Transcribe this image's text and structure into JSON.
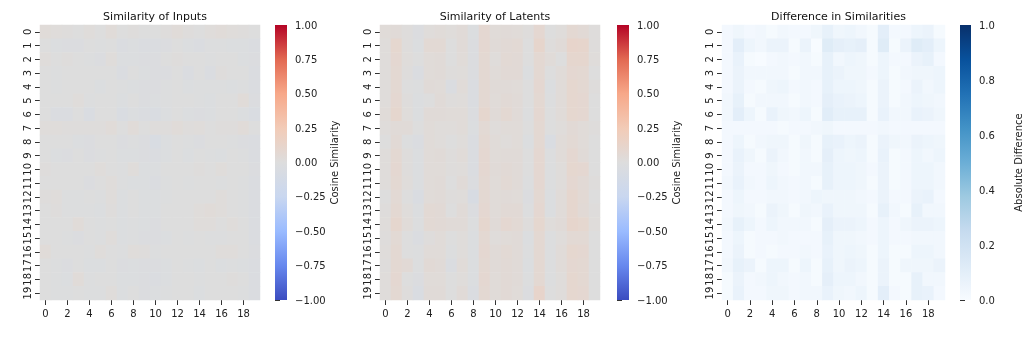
{
  "chart_data": [
    {
      "type": "heatmap",
      "title": "Similarity of Inputs",
      "clabel": "Cosine Similarity",
      "categories": [
        "0",
        null,
        "2",
        null,
        "4",
        null,
        "6",
        null,
        "8",
        null,
        "10",
        null,
        "12",
        null,
        "14",
        null,
        "16",
        null,
        "18",
        null
      ],
      "y_categories": [
        "0",
        "1",
        "2",
        "3",
        "4",
        "5",
        "6",
        "7",
        "8",
        "9",
        "10",
        "11",
        "12",
        "13",
        "14",
        "15",
        "16",
        "17",
        "18",
        "19"
      ],
      "clim": [
        -1,
        1
      ],
      "cticks": [
        {
          "value": -1,
          "label": "−1.00"
        },
        {
          "value": -0.75,
          "label": "−0.75"
        },
        {
          "value": -0.5,
          "label": "−0.50"
        },
        {
          "value": -0.25,
          "label": "−0.25"
        },
        {
          "value": 0,
          "label": "0.00"
        },
        {
          "value": 0.25,
          "label": "0.25"
        },
        {
          "value": 0.5,
          "label": "0.50"
        },
        {
          "value": 0.75,
          "label": "0.75"
        },
        {
          "value": 1,
          "label": "1.00"
        }
      ],
      "colors": [
        "#3b4cc0",
        "#6788ee",
        "#9abbff",
        "#c9d7f0",
        "#dddddd",
        "#f2cbb7",
        "#f7a889",
        "#e26952",
        "#b40426"
      ],
      "cells": [
        [
          0.03,
          0.02,
          0.01,
          0.0,
          0.02,
          0.0,
          0.03,
          0.0,
          0.01,
          0.0,
          0.0,
          0.01,
          0.03,
          0.01,
          0.0,
          0.02,
          0.03,
          0.02,
          0.01,
          0.0
        ],
        [
          0.0,
          -0.02,
          -0.03,
          -0.03,
          0.0,
          -0.01,
          0.0,
          -0.04,
          -0.02,
          -0.04,
          -0.04,
          -0.03,
          0.0,
          -0.02,
          -0.04,
          -0.01,
          -0.01,
          -0.02,
          -0.02,
          -0.04
        ],
        [
          0.02,
          0.0,
          0.01,
          0.0,
          -0.01,
          -0.03,
          0.02,
          -0.02,
          -0.02,
          -0.03,
          -0.03,
          0.0,
          0.01,
          0.0,
          0.0,
          -0.01,
          0.0,
          0.0,
          -0.02,
          -0.03
        ],
        [
          0.0,
          -0.01,
          0.0,
          0.0,
          0.0,
          0.0,
          0.0,
          -0.04,
          0.0,
          -0.02,
          -0.03,
          -0.03,
          0.0,
          -0.04,
          0.0,
          -0.04,
          0.01,
          0.0,
          0.0,
          -0.04
        ],
        [
          0.0,
          -0.01,
          0.0,
          0.0,
          0.0,
          -0.02,
          0.0,
          -0.01,
          -0.02,
          -0.03,
          -0.03,
          -0.01,
          0.0,
          -0.02,
          -0.01,
          -0.01,
          -0.01,
          -0.02,
          -0.01,
          -0.04
        ],
        [
          0.0,
          0.0,
          0.0,
          0.02,
          -0.01,
          0.0,
          0.0,
          -0.02,
          0.0,
          -0.03,
          -0.02,
          -0.01,
          0.0,
          0.0,
          -0.01,
          -0.02,
          0.0,
          0.0,
          0.03,
          -0.03
        ],
        [
          0.0,
          -0.04,
          -0.04,
          0.0,
          -0.05,
          0.0,
          0.0,
          -0.05,
          -0.02,
          -0.04,
          -0.05,
          -0.02,
          0.0,
          -0.02,
          -0.03,
          -0.02,
          0.0,
          0.0,
          -0.02,
          -0.05
        ],
        [
          0.02,
          0.02,
          0.01,
          0.01,
          0.01,
          0.01,
          0.03,
          0.0,
          0.03,
          0.0,
          0.01,
          0.01,
          0.03,
          0.01,
          0.02,
          0.0,
          0.01,
          0.01,
          0.03,
          0.0
        ],
        [
          0.0,
          0.0,
          0.0,
          -0.02,
          -0.03,
          0.0,
          0.0,
          -0.03,
          -0.01,
          -0.03,
          -0.06,
          -0.02,
          0.0,
          -0.01,
          -0.03,
          0.0,
          0.0,
          -0.01,
          -0.03,
          -0.04
        ],
        [
          0.0,
          -0.02,
          -0.03,
          0.0,
          -0.03,
          -0.01,
          0.0,
          -0.02,
          -0.02,
          -0.03,
          -0.04,
          -0.02,
          0.0,
          -0.02,
          0.0,
          -0.01,
          -0.02,
          0.0,
          -0.01,
          -0.04
        ],
        [
          0.01,
          0.0,
          0.0,
          0.0,
          0.0,
          0.02,
          0.0,
          -0.01,
          0.02,
          -0.02,
          -0.02,
          0.0,
          0.0,
          0.0,
          0.01,
          0.0,
          0.02,
          0.0,
          0.0,
          -0.03
        ],
        [
          0.0,
          0.0,
          0.0,
          0.0,
          -0.03,
          0.0,
          0.02,
          -0.01,
          -0.02,
          -0.02,
          -0.04,
          -0.01,
          0.0,
          -0.01,
          0.0,
          0.0,
          -0.01,
          0.0,
          -0.01,
          -0.04
        ],
        [
          0.01,
          0.02,
          -0.01,
          -0.01,
          0.0,
          -0.01,
          0.02,
          -0.02,
          0.0,
          -0.02,
          -0.02,
          -0.01,
          0.0,
          0.0,
          0.0,
          0.0,
          0.02,
          0.0,
          -0.01,
          -0.04
        ],
        [
          0.0,
          0.01,
          -0.01,
          -0.01,
          -0.01,
          -0.02,
          0.01,
          -0.02,
          0.0,
          -0.02,
          -0.02,
          0.0,
          0.0,
          0.0,
          0.02,
          0.03,
          0.02,
          0.0,
          -0.01,
          -0.04
        ],
        [
          0.0,
          0.0,
          0.0,
          0.03,
          0.0,
          -0.01,
          0.0,
          -0.02,
          -0.01,
          -0.02,
          -0.03,
          0.0,
          0.0,
          0.0,
          0.02,
          0.02,
          0.0,
          0.02,
          0.0,
          -0.04
        ],
        [
          0.0,
          0.0,
          -0.01,
          -0.03,
          0.0,
          -0.01,
          0.02,
          -0.02,
          -0.01,
          -0.03,
          -0.03,
          -0.02,
          0.0,
          -0.01,
          0.0,
          -0.01,
          -0.01,
          0.0,
          0.0,
          -0.04
        ],
        [
          0.03,
          0.0,
          0.0,
          0.0,
          -0.01,
          0.02,
          0.0,
          -0.01,
          0.02,
          0.01,
          -0.01,
          0.0,
          0.0,
          0.0,
          0.0,
          0.0,
          0.02,
          0.02,
          0.0,
          -0.03
        ],
        [
          0.0,
          -0.01,
          -0.03,
          0.0,
          -0.02,
          -0.02,
          0.0,
          -0.03,
          -0.02,
          -0.03,
          -0.03,
          -0.02,
          0.0,
          -0.01,
          -0.02,
          0.0,
          -0.02,
          -0.01,
          -0.02,
          -0.04
        ],
        [
          0.0,
          -0.01,
          -0.02,
          0.03,
          -0.01,
          0.0,
          0.0,
          -0.02,
          -0.02,
          -0.03,
          -0.04,
          -0.02,
          0.0,
          0.0,
          -0.01,
          0.0,
          0.0,
          0.01,
          0.0,
          -0.04
        ],
        [
          0.0,
          -0.01,
          -0.01,
          0.0,
          -0.01,
          -0.01,
          0.02,
          -0.02,
          0.0,
          -0.03,
          -0.02,
          -0.01,
          0.0,
          0.0,
          -0.02,
          0.0,
          0.0,
          0.0,
          -0.01,
          -0.04
        ]
      ]
    },
    {
      "type": "heatmap",
      "title": "Similarity of Latents",
      "clabel": "Cosine Similarity",
      "categories": [
        "0",
        null,
        "2",
        null,
        "4",
        null,
        "6",
        null,
        "8",
        null,
        "10",
        null,
        "12",
        null,
        "14",
        null,
        "16",
        null,
        "18",
        null
      ],
      "y_categories": [
        "0",
        "1",
        "2",
        "3",
        "4",
        "5",
        "6",
        "7",
        "8",
        "9",
        "10",
        "11",
        "12",
        "13",
        "14",
        "15",
        "16",
        "17",
        "18",
        "19"
      ],
      "clim": [
        -1,
        1
      ],
      "cticks": [
        {
          "value": -1,
          "label": "−1.00"
        },
        {
          "value": -0.75,
          "label": "−0.75"
        },
        {
          "value": -0.5,
          "label": "−0.50"
        },
        {
          "value": -0.25,
          "label": "−0.25"
        },
        {
          "value": 0,
          "label": "0.00"
        },
        {
          "value": 0.25,
          "label": "0.25"
        },
        {
          "value": 0.5,
          "label": "0.50"
        },
        {
          "value": 0.75,
          "label": "0.75"
        },
        {
          "value": 1,
          "label": "1.00"
        }
      ],
      "colors": [
        "#3b4cc0",
        "#6788ee",
        "#9abbff",
        "#c9d7f0",
        "#dddddd",
        "#f2cbb7",
        "#f7a889",
        "#e26952",
        "#b40426"
      ],
      "cells": [
        [
          0.03,
          0.04,
          0.01,
          -0.03,
          0.02,
          0.03,
          0.02,
          0.04,
          -0.02,
          0.08,
          0.03,
          0.04,
          0.03,
          0.01,
          0.08,
          0.0,
          0.02,
          0.07,
          0.05,
          0.01
        ],
        [
          0.02,
          0.09,
          0.01,
          -0.02,
          0.06,
          0.06,
          0.0,
          0.04,
          -0.03,
          0.08,
          0.04,
          0.05,
          0.06,
          0.0,
          0.11,
          0.01,
          0.04,
          0.12,
          0.11,
          0.01
        ],
        [
          0.02,
          0.08,
          0.02,
          0.0,
          0.03,
          0.04,
          0.0,
          0.03,
          -0.03,
          0.07,
          0.02,
          0.06,
          0.05,
          0.0,
          0.07,
          0.03,
          0.0,
          0.1,
          0.1,
          0.02
        ],
        [
          0.02,
          0.07,
          0.01,
          -0.04,
          0.03,
          0.04,
          0.01,
          0.02,
          -0.03,
          0.07,
          0.03,
          0.05,
          0.05,
          -0.02,
          0.07,
          0.0,
          0.03,
          0.08,
          0.07,
          0.0
        ],
        [
          0.02,
          0.07,
          0.0,
          -0.01,
          0.04,
          0.03,
          -0.04,
          0.03,
          -0.04,
          0.07,
          0.04,
          0.04,
          0.03,
          0.0,
          0.08,
          -0.02,
          0.03,
          0.09,
          0.07,
          0.01
        ],
        [
          0.02,
          0.08,
          0.01,
          -0.02,
          0.0,
          0.04,
          0.01,
          0.02,
          -0.04,
          0.07,
          0.03,
          0.05,
          0.04,
          0.0,
          0.07,
          -0.01,
          0.03,
          0.09,
          0.08,
          0.0
        ],
        [
          0.03,
          0.1,
          0.02,
          -0.02,
          0.04,
          0.04,
          0.03,
          0.03,
          -0.03,
          0.1,
          0.04,
          0.07,
          0.04,
          -0.01,
          0.08,
          0.0,
          0.03,
          0.09,
          0.08,
          0.0
        ],
        [
          0.02,
          0.04,
          0.04,
          0.0,
          0.03,
          0.02,
          0.02,
          0.03,
          -0.02,
          0.06,
          0.02,
          0.03,
          0.03,
          0.0,
          0.07,
          0.0,
          0.02,
          0.05,
          0.03,
          0.01
        ],
        [
          0.0,
          0.05,
          -0.01,
          -0.04,
          0.03,
          0.02,
          0.0,
          0.02,
          -0.04,
          0.07,
          0.03,
          0.02,
          0.03,
          -0.02,
          0.07,
          -0.05,
          0.03,
          0.06,
          0.03,
          0.0
        ],
        [
          0.02,
          0.07,
          0.01,
          -0.02,
          0.03,
          0.04,
          0.01,
          0.03,
          -0.04,
          0.08,
          0.03,
          0.04,
          0.04,
          0.0,
          0.08,
          -0.01,
          0.03,
          0.08,
          0.04,
          0.0
        ],
        [
          0.02,
          0.08,
          0.01,
          -0.02,
          0.03,
          0.03,
          0.01,
          0.02,
          -0.04,
          0.08,
          0.04,
          0.05,
          0.04,
          0.0,
          0.08,
          -0.01,
          0.02,
          0.09,
          0.08,
          0.0
        ],
        [
          0.02,
          0.07,
          0.02,
          -0.02,
          0.03,
          0.04,
          0.0,
          0.04,
          -0.03,
          0.07,
          0.03,
          0.06,
          0.04,
          -0.01,
          0.08,
          -0.01,
          0.02,
          0.08,
          0.05,
          0.01
        ],
        [
          0.0,
          0.06,
          0.0,
          -0.05,
          0.03,
          0.04,
          0.01,
          0.02,
          -0.07,
          0.07,
          0.03,
          0.04,
          0.03,
          -0.03,
          0.07,
          -0.02,
          0.03,
          0.1,
          0.06,
          0.0
        ],
        [
          0.01,
          0.07,
          0.02,
          -0.02,
          0.06,
          0.05,
          0.0,
          0.04,
          -0.03,
          0.08,
          0.03,
          0.05,
          0.05,
          -0.01,
          0.08,
          -0.02,
          0.03,
          0.1,
          0.05,
          0.01
        ],
        [
          0.02,
          0.1,
          0.03,
          -0.01,
          0.06,
          0.05,
          0.04,
          0.04,
          -0.01,
          0.1,
          0.04,
          0.08,
          0.06,
          0.01,
          0.09,
          0.02,
          0.04,
          0.11,
          0.09,
          0.02
        ],
        [
          0.01,
          0.06,
          0.0,
          -0.04,
          0.01,
          0.03,
          0.0,
          0.02,
          -0.02,
          0.07,
          0.02,
          0.03,
          0.04,
          -0.02,
          0.07,
          -0.01,
          0.02,
          0.06,
          0.06,
          0.0
        ],
        [
          0.02,
          0.07,
          0.0,
          -0.01,
          0.03,
          0.03,
          -0.01,
          0.02,
          -0.02,
          0.08,
          0.04,
          0.06,
          0.04,
          -0.01,
          0.07,
          -0.01,
          0.03,
          0.09,
          0.08,
          0.0
        ],
        [
          0.01,
          0.07,
          0.05,
          -0.01,
          0.05,
          0.04,
          -0.04,
          0.03,
          -0.02,
          0.07,
          0.04,
          0.05,
          0.04,
          -0.02,
          0.07,
          -0.01,
          0.03,
          0.08,
          0.07,
          0.0
        ],
        [
          0.02,
          0.08,
          0.0,
          -0.03,
          0.03,
          0.03,
          0.0,
          0.02,
          -0.02,
          0.08,
          0.03,
          0.05,
          0.04,
          -0.01,
          0.07,
          -0.01,
          0.02,
          0.09,
          0.07,
          0.0
        ],
        [
          0.02,
          0.07,
          0.01,
          -0.05,
          0.04,
          0.04,
          0.0,
          0.04,
          -0.04,
          0.07,
          0.03,
          0.05,
          0.03,
          -0.03,
          0.12,
          0.0,
          0.02,
          0.09,
          0.08,
          0.0
        ]
      ]
    },
    {
      "type": "heatmap",
      "title": "Difference in Similarities",
      "clabel": "Absolute Difference",
      "categories": [
        "0",
        null,
        "2",
        null,
        "4",
        null,
        "6",
        null,
        "8",
        null,
        "10",
        null,
        "12",
        null,
        "14",
        null,
        "16",
        null,
        "18",
        null
      ],
      "y_categories": [
        "0",
        "1",
        "2",
        "3",
        "4",
        "5",
        "6",
        "7",
        "8",
        "9",
        "10",
        "11",
        "12",
        "13",
        "14",
        "15",
        "16",
        "17",
        "18",
        "19"
      ],
      "clim": [
        0,
        1
      ],
      "cticks": [
        {
          "value": 0,
          "label": "0.0"
        },
        {
          "value": 0.2,
          "label": "0.2"
        },
        {
          "value": 0.4,
          "label": "0.4"
        },
        {
          "value": 0.6,
          "label": "0.6"
        },
        {
          "value": 0.8,
          "label": "0.8"
        },
        {
          "value": 1,
          "label": "1.0"
        }
      ],
      "colors": [
        "#f7fbff",
        "#deebf7",
        "#c6dbef",
        "#9ecae1",
        "#6baed6",
        "#4292c6",
        "#2171b5",
        "#08519c",
        "#08306b"
      ],
      "cells": [
        [
          0.02,
          0.04,
          0.02,
          0.03,
          0.01,
          0.03,
          0.02,
          0.02,
          0.04,
          0.08,
          0.04,
          0.05,
          0.03,
          0.01,
          0.1,
          0.02,
          0.02,
          0.05,
          0.06,
          0.01
        ],
        [
          0.02,
          0.1,
          0.05,
          0.03,
          0.06,
          0.06,
          0.01,
          0.06,
          0.0,
          0.12,
          0.09,
          0.08,
          0.09,
          0.01,
          0.12,
          0.01,
          0.06,
          0.12,
          0.1,
          0.05
        ],
        [
          0.02,
          0.07,
          0.01,
          0.0,
          0.02,
          0.03,
          0.02,
          0.03,
          0.01,
          0.08,
          0.03,
          0.05,
          0.04,
          0.01,
          0.05,
          0.02,
          0.02,
          0.06,
          0.08,
          0.02
        ],
        [
          0.02,
          0.06,
          0.03,
          0.03,
          0.03,
          0.03,
          0.01,
          0.03,
          0.03,
          0.08,
          0.06,
          0.04,
          0.04,
          0.02,
          0.05,
          0.01,
          0.03,
          0.04,
          0.04,
          0.05
        ],
        [
          0.02,
          0.06,
          0.02,
          0.01,
          0.04,
          0.05,
          0.02,
          0.03,
          0.02,
          0.08,
          0.05,
          0.05,
          0.04,
          0.01,
          0.06,
          0.01,
          0.02,
          0.06,
          0.03,
          0.05
        ],
        [
          0.03,
          0.08,
          0.01,
          0.03,
          0.03,
          0.03,
          0.01,
          0.03,
          0.02,
          0.09,
          0.07,
          0.06,
          0.05,
          0.01,
          0.06,
          0.01,
          0.03,
          0.05,
          0.04,
          0.03
        ],
        [
          0.03,
          0.1,
          0.05,
          0.01,
          0.07,
          0.04,
          0.03,
          0.05,
          0.01,
          0.11,
          0.08,
          0.08,
          0.08,
          0.01,
          0.07,
          0.03,
          0.03,
          0.07,
          0.06,
          0.04
        ],
        [
          0.02,
          0.02,
          0.02,
          0.02,
          0.02,
          0.01,
          0.02,
          0.02,
          0.03,
          0.04,
          0.02,
          0.02,
          0.02,
          0.02,
          0.03,
          0.02,
          0.02,
          0.02,
          0.02,
          0.02
        ],
        [
          0.02,
          0.05,
          0.01,
          0.03,
          0.04,
          0.04,
          0.01,
          0.04,
          0.01,
          0.08,
          0.07,
          0.05,
          0.06,
          0.01,
          0.06,
          0.04,
          0.03,
          0.06,
          0.05,
          0.04
        ],
        [
          0.02,
          0.07,
          0.04,
          0.01,
          0.06,
          0.03,
          0.01,
          0.03,
          0.01,
          0.09,
          0.05,
          0.04,
          0.05,
          0.01,
          0.07,
          0.01,
          0.02,
          0.05,
          0.03,
          0.05
        ],
        [
          0.02,
          0.06,
          0.02,
          0.02,
          0.04,
          0.02,
          0.01,
          0.03,
          0.03,
          0.08,
          0.05,
          0.05,
          0.04,
          0.02,
          0.06,
          0.01,
          0.02,
          0.05,
          0.05,
          0.03
        ],
        [
          0.03,
          0.07,
          0.03,
          0.02,
          0.05,
          0.03,
          0.02,
          0.03,
          0.01,
          0.08,
          0.05,
          0.05,
          0.04,
          0.01,
          0.06,
          0.01,
          0.02,
          0.05,
          0.05,
          0.03
        ],
        [
          0.02,
          0.05,
          0.02,
          0.02,
          0.03,
          0.03,
          0.02,
          0.03,
          0.05,
          0.04,
          0.04,
          0.04,
          0.03,
          0.02,
          0.06,
          0.02,
          0.02,
          0.06,
          0.07,
          0.02
        ],
        [
          0.02,
          0.04,
          0.03,
          0.01,
          0.06,
          0.04,
          0.01,
          0.04,
          0.03,
          0.07,
          0.04,
          0.04,
          0.04,
          0.01,
          0.08,
          0.03,
          0.01,
          0.08,
          0.03,
          0.03
        ],
        [
          0.03,
          0.08,
          0.05,
          0.02,
          0.05,
          0.03,
          0.03,
          0.03,
          0.01,
          0.09,
          0.06,
          0.06,
          0.05,
          0.02,
          0.05,
          0.02,
          0.04,
          0.06,
          0.06,
          0.05
        ],
        [
          0.02,
          0.05,
          0.01,
          0.02,
          0.02,
          0.03,
          0.02,
          0.02,
          0.02,
          0.08,
          0.04,
          0.04,
          0.03,
          0.02,
          0.05,
          0.02,
          0.02,
          0.03,
          0.03,
          0.03
        ],
        [
          0.02,
          0.06,
          0.01,
          0.02,
          0.01,
          0.02,
          0.02,
          0.03,
          0.02,
          0.07,
          0.04,
          0.05,
          0.04,
          0.01,
          0.05,
          0.01,
          0.01,
          0.05,
          0.05,
          0.03
        ],
        [
          0.03,
          0.08,
          0.06,
          0.01,
          0.05,
          0.05,
          0.01,
          0.05,
          0.01,
          0.08,
          0.04,
          0.06,
          0.05,
          0.01,
          0.06,
          0.01,
          0.04,
          0.04,
          0.04,
          0.06
        ],
        [
          0.01,
          0.06,
          0.02,
          0.03,
          0.05,
          0.03,
          0.02,
          0.03,
          0.01,
          0.09,
          0.05,
          0.05,
          0.03,
          0.01,
          0.06,
          0.01,
          0.01,
          0.08,
          0.03,
          0.03
        ],
        [
          0.01,
          0.07,
          0.02,
          0.02,
          0.04,
          0.04,
          0.02,
          0.03,
          0.03,
          0.07,
          0.04,
          0.03,
          0.05,
          0.01,
          0.1,
          0.02,
          0.01,
          0.08,
          0.07,
          0.02
        ]
      ]
    }
  ]
}
